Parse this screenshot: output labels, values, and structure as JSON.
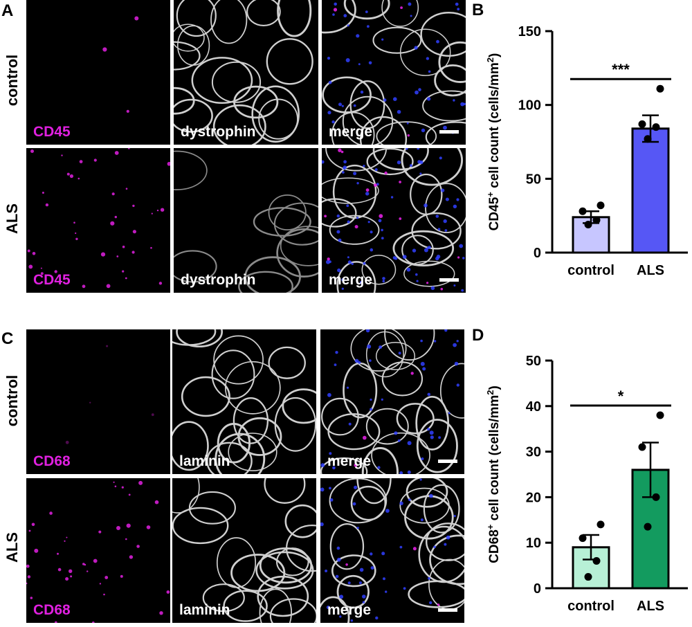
{
  "panels": {
    "A": {
      "letter": "A",
      "rows": [
        {
          "label": "control",
          "tiles": [
            {
              "channel": "CD45",
              "kind": "marker"
            },
            {
              "channel": "dystrophin",
              "kind": "membrane"
            },
            {
              "channel": "merge",
              "kind": "merge"
            }
          ]
        },
        {
          "label": "ALS",
          "tiles": [
            {
              "channel": "CD45",
              "kind": "marker"
            },
            {
              "channel": "dystrophin",
              "kind": "membrane"
            },
            {
              "channel": "merge",
              "kind": "merge"
            }
          ]
        }
      ]
    },
    "C": {
      "letter": "C",
      "rows": [
        {
          "label": "control",
          "tiles": [
            {
              "channel": "CD68",
              "kind": "marker"
            },
            {
              "channel": "laminin",
              "kind": "membrane"
            },
            {
              "channel": "merge",
              "kind": "merge"
            }
          ]
        },
        {
          "label": "ALS",
          "tiles": [
            {
              "channel": "CD68",
              "kind": "marker"
            },
            {
              "channel": "laminin",
              "kind": "membrane"
            },
            {
              "channel": "merge",
              "kind": "merge"
            }
          ]
        }
      ]
    }
  },
  "colors": {
    "marker": "#e020e0",
    "membrane": "#ffffff",
    "nuclei": "#3040ff"
  },
  "chart_data": [
    {
      "letter": "B",
      "type": "bar",
      "categories": [
        "control",
        "ALS"
      ],
      "values": [
        24,
        84
      ],
      "errors": [
        4,
        9
      ],
      "points": [
        [
          32,
          28,
          22,
          19
        ],
        [
          111,
          87,
          85,
          77
        ]
      ],
      "ylabel_main": "CD45",
      "ylabel_sup": "+",
      "ylabel_rest": " cell count (cells/mm",
      "ylabel_sup2": "2",
      "ylabel_end": ")",
      "ylim": [
        0,
        150
      ],
      "yticks": [
        0,
        50,
        100,
        150
      ],
      "significance": "***",
      "bar_colors": [
        "#c7c6ff",
        "#5657f5"
      ]
    },
    {
      "letter": "D",
      "type": "bar",
      "categories": [
        "control",
        "ALS"
      ],
      "values": [
        9,
        26
      ],
      "errors": [
        2.7,
        6
      ],
      "points": [
        [
          14,
          11,
          6,
          2.5
        ],
        [
          38,
          31,
          20,
          13.5
        ]
      ],
      "ylabel_main": "CD68",
      "ylabel_sup": "+",
      "ylabel_rest": " cell count (cells/mm",
      "ylabel_sup2": "2",
      "ylabel_end": ")",
      "ylim": [
        0,
        50
      ],
      "yticks": [
        0,
        10,
        20,
        30,
        40,
        50
      ],
      "significance": "*",
      "bar_colors": [
        "#b7f0d6",
        "#139b5f"
      ]
    }
  ]
}
